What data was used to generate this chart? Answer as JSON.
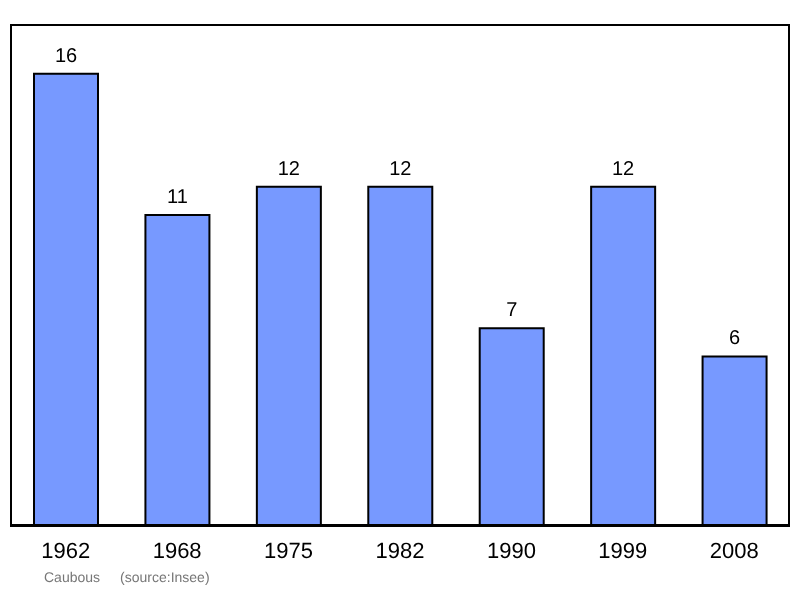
{
  "chart_data": {
    "type": "bar",
    "categories": [
      "1962",
      "1968",
      "1975",
      "1982",
      "1990",
      "1999",
      "2008"
    ],
    "values": [
      16,
      11,
      12,
      12,
      7,
      12,
      6
    ],
    "color": "#7799ff",
    "data_labels": true,
    "annotations": [
      "Caubous",
      "(source:Insee)"
    ]
  }
}
